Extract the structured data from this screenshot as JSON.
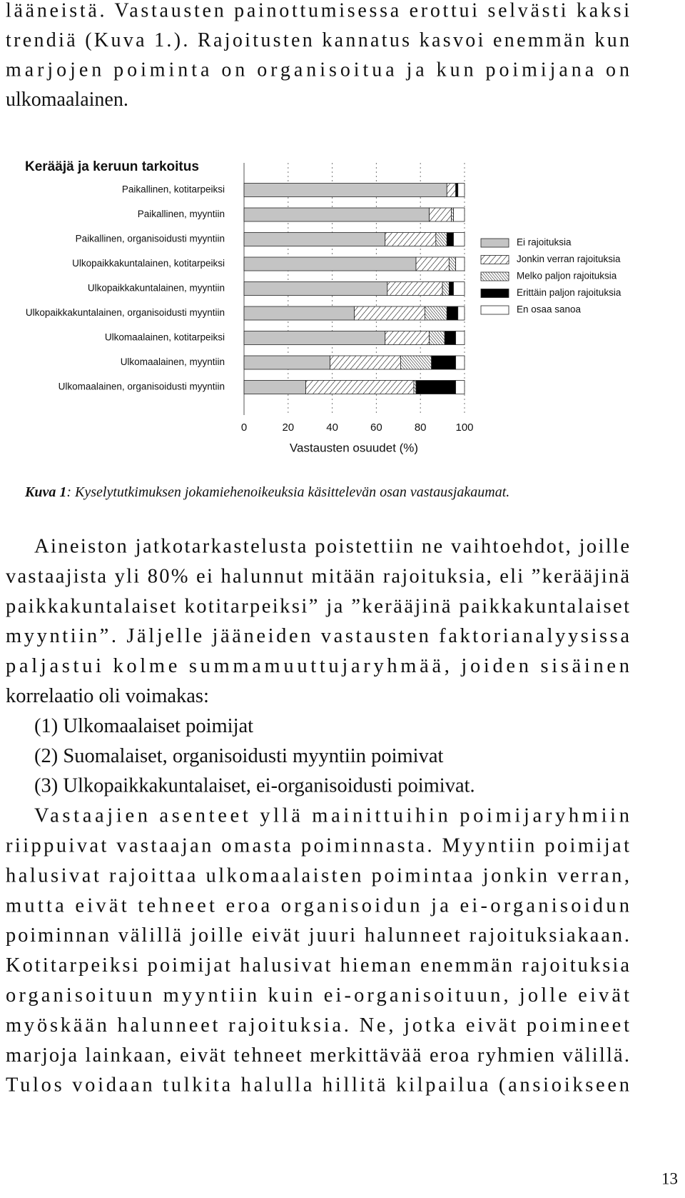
{
  "top_paragraph": [
    "lääneistä. Vastausten painottumisessa erottui selvästi kaksi",
    "trendiä (Kuva 1.). Rajoitusten kannatus kasvoi enemmän kun",
    "marjojen poiminta on organisoitua ja kun poimijana on",
    "ulkomaalainen."
  ],
  "chart_data": {
    "type": "bar",
    "orientation": "horizontal",
    "stacked": true,
    "title": "Kerääjä ja keruun tarkoitus",
    "x_label": "Vastausten osuudet (%)",
    "categories": [
      "Paikallinen, kotitarpeiksi",
      "Paikallinen, myyntiin",
      "Paikallinen, organisoidusti myyntiin",
      "Ulkopaikkakuntalainen, kotitarpeiksi",
      "Ulkopaikkakuntalainen, myyntiin",
      "Ulkopaikkakuntalainen, organisoidusti myyntiin",
      "Ulkomaalainen, kotitarpeiksi",
      "Ulkomaalainen, myyntiin",
      "Ulkomaalainen, organisoidusti myyntiin"
    ],
    "series": [
      {
        "name": "Ei rajoituksia",
        "color": "#c4c4c4",
        "pattern": "none",
        "values": [
          92,
          84,
          64,
          78,
          65,
          50,
          64,
          39,
          28
        ]
      },
      {
        "name": "Jonkin verran rajoituksia",
        "color": "#000000",
        "pattern": "hatch-wide",
        "values": [
          4,
          10,
          23,
          15,
          25,
          32,
          20,
          32,
          49
        ]
      },
      {
        "name": "Melko paljon rajoituksia",
        "color": "#000000",
        "pattern": "hatch-dense",
        "values": [
          0,
          1,
          5,
          3,
          3,
          10,
          7,
          14,
          1
        ]
      },
      {
        "name": "Erittäin paljon rajoituksia",
        "color": "#000000",
        "pattern": "none",
        "values": [
          1,
          0,
          3,
          0,
          2,
          5,
          5,
          11,
          18
        ]
      },
      {
        "name": "En osaa sanoa",
        "color": "#ffffff",
        "pattern": "none",
        "values": [
          3,
          5,
          5,
          4,
          5,
          3,
          4,
          4,
          4
        ]
      }
    ],
    "xlim": [
      0,
      100
    ],
    "xticks": [
      0,
      20,
      40,
      60,
      80,
      100
    ],
    "grid": true,
    "legend": "right"
  },
  "caption": {
    "label": "Kuva 1",
    "text": ": Kyselytutkimuksen jokamiehenoikeuksia käsittelevän osan vastausjakaumat."
  },
  "body": [
    {
      "kind": "paragraph",
      "lines": [
        "Aineiston jatkotarkastelusta poistettiin ne vaihtoehdot, joille",
        "vastaajista yli 80% ei halunnut mitään rajoituksia, eli ”kerääjinä",
        "paikkakuntalaiset kotitarpeiksi” ja ”kerääjinä paikkakuntalaiset",
        "myyntiin”. Jäljelle jääneiden vastausten faktorianalyysissa",
        "paljastui kolme summamuuttujaryhmää, joiden sisäinen",
        "korrelaatio oli voimakas:"
      ]
    },
    {
      "kind": "list",
      "lines": [
        "(1) Ulkomaalaiset poimijat",
        "(2) Suomalaiset, organisoidusti myyntiin poimivat",
        "(3) Ulkopaikkakuntalaiset, ei-organisoidusti poimivat."
      ]
    },
    {
      "kind": "paragraph",
      "lines": [
        "Vastaajien asenteet yllä mainittuihin poimijaryhmiin",
        "riippuivat vastaajan omasta poiminnasta. Myyntiin poimijat",
        "halusivat rajoittaa ulkomaalaisten poimintaa jonkin verran,",
        "mutta eivät tehneet eroa organisoidun ja ei-organisoidun",
        "poiminnan välillä joille eivät juuri halunneet rajoituksiakaan.",
        "Kotitarpeiksi poimijat halusivat hieman enemmän rajoituksia",
        "organisoituun myyntiin kuin ei-organisoituun, jolle eivät",
        "myöskään halunneet rajoituksia. Ne, jotka eivät poimineet",
        "marjoja lainkaan, eivät tehneet merkittävää eroa ryhmien välillä.",
        "Tulos voidaan tulkita halulla hillitä kilpailua (ansioikseen"
      ]
    }
  ],
  "page_number": "13"
}
